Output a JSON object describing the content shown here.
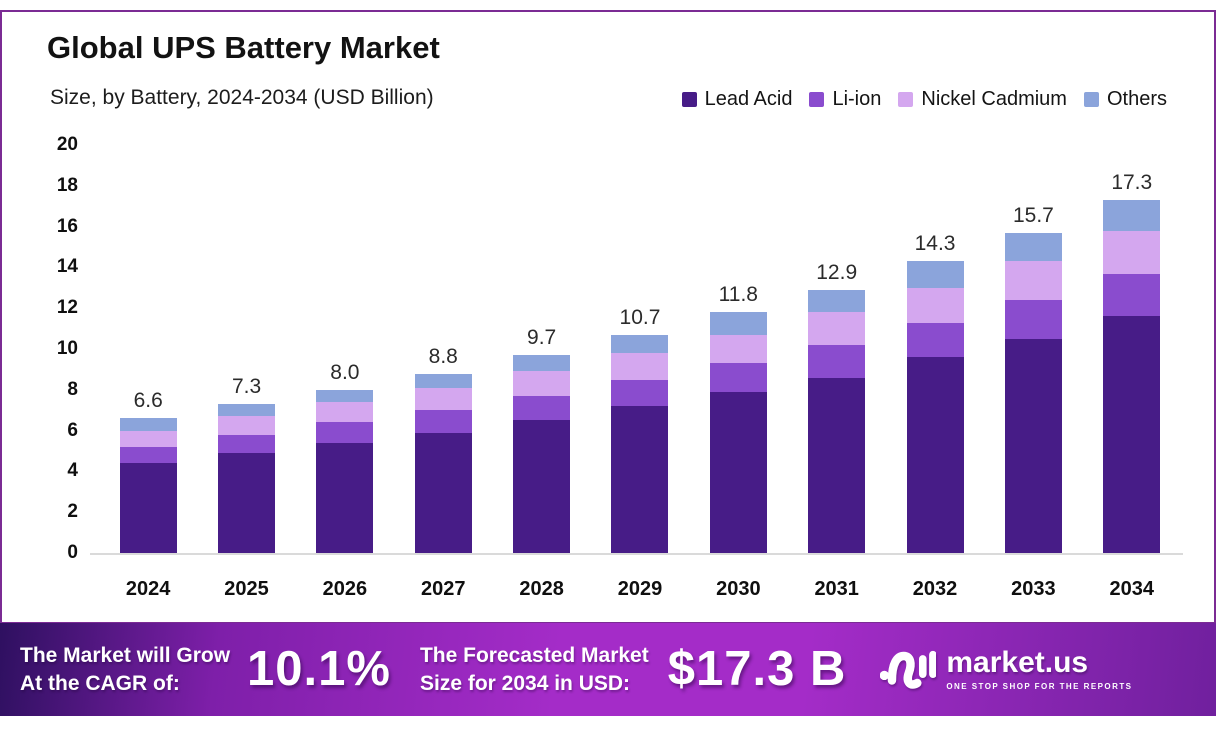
{
  "colors": {
    "panel_border": "#7B2B94",
    "baseline": "#DADADA",
    "banner_gradient_left": "#2E1060",
    "banner_gradient_midleft": "#7E1FA9",
    "banner_gradient_mid": "#A42CC8",
    "banner_gradient_right": "#70209E",
    "banner_text": "#FFFFFF",
    "title_text": "#121212"
  },
  "chart_data": {
    "type": "bar",
    "stacked": true,
    "title": "Global UPS Battery Market",
    "subtitle": "Size, by Battery, 2024-2034 (USD Billion)",
    "categories": [
      "2024",
      "2025",
      "2026",
      "2027",
      "2028",
      "2029",
      "2030",
      "2031",
      "2032",
      "2033",
      "2034"
    ],
    "series": [
      {
        "name": "Lead Acid",
        "color": "#471C87",
        "values": [
          4.4,
          4.9,
          5.4,
          5.9,
          6.5,
          7.2,
          7.9,
          8.6,
          9.6,
          10.5,
          11.6
        ]
      },
      {
        "name": "Li-ion",
        "color": "#8A4CCE",
        "values": [
          0.8,
          0.9,
          1.0,
          1.1,
          1.2,
          1.3,
          1.4,
          1.6,
          1.7,
          1.9,
          2.1
        ]
      },
      {
        "name": "Nickel Cadmium",
        "color": "#D4A7EF",
        "values": [
          0.8,
          0.9,
          1.0,
          1.1,
          1.2,
          1.3,
          1.4,
          1.6,
          1.7,
          1.9,
          2.1
        ]
      },
      {
        "name": "Others",
        "color": "#8BA4DB",
        "values": [
          0.6,
          0.6,
          0.6,
          0.7,
          0.8,
          0.9,
          1.1,
          1.1,
          1.3,
          1.4,
          1.5
        ]
      }
    ],
    "totals": [
      "6.6",
      "7.3",
      "8.0",
      "8.8",
      "9.7",
      "10.7",
      "11.8",
      "12.9",
      "14.3",
      "15.7",
      "17.3"
    ],
    "ylim": [
      0,
      20
    ],
    "yticks": [
      0,
      2,
      4,
      6,
      8,
      10,
      12,
      14,
      16,
      18,
      20
    ],
    "grid": false,
    "legend_position": "top-right"
  },
  "banner": {
    "cagr_label_line1": "The Market will Grow",
    "cagr_label_line2": "At the CAGR of:",
    "cagr_value": "10.1%",
    "forecast_label_line1": "The Forecasted Market",
    "forecast_label_line2": "Size for 2034 in USD:",
    "forecast_value": "$17.3 B",
    "logo_text": "market.us",
    "logo_tagline": "ONE STOP SHOP FOR THE REPORTS"
  }
}
